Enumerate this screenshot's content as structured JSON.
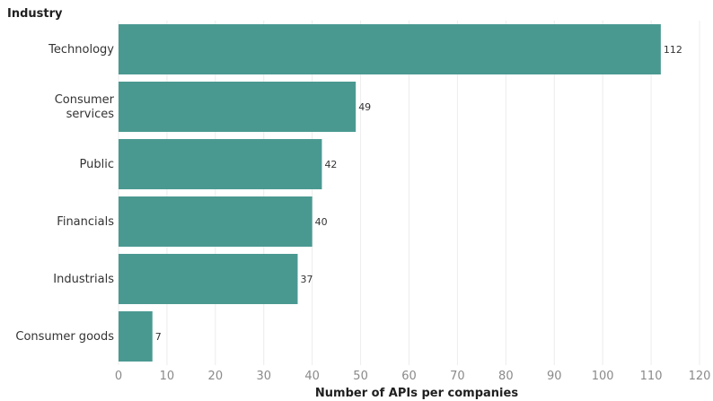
{
  "chart_data": {
    "type": "bar",
    "orientation": "horizontal",
    "ylabel": "Industry",
    "xlabel": "Number of APIs per companies",
    "categories": [
      [
        "Technology"
      ],
      [
        "Consumer",
        "services"
      ],
      [
        "Public"
      ],
      [
        "Financials"
      ],
      [
        "Industrials"
      ],
      [
        "Consumer goods"
      ]
    ],
    "values": [
      112,
      49,
      42,
      40,
      37,
      7
    ],
    "xlim": [
      0,
      120
    ],
    "ticks": [
      0,
      10,
      20,
      30,
      40,
      50,
      60,
      70,
      80,
      90,
      100,
      110,
      120
    ],
    "bar_color": "#4a9991",
    "grid": "vertical",
    "data_labels": true
  }
}
